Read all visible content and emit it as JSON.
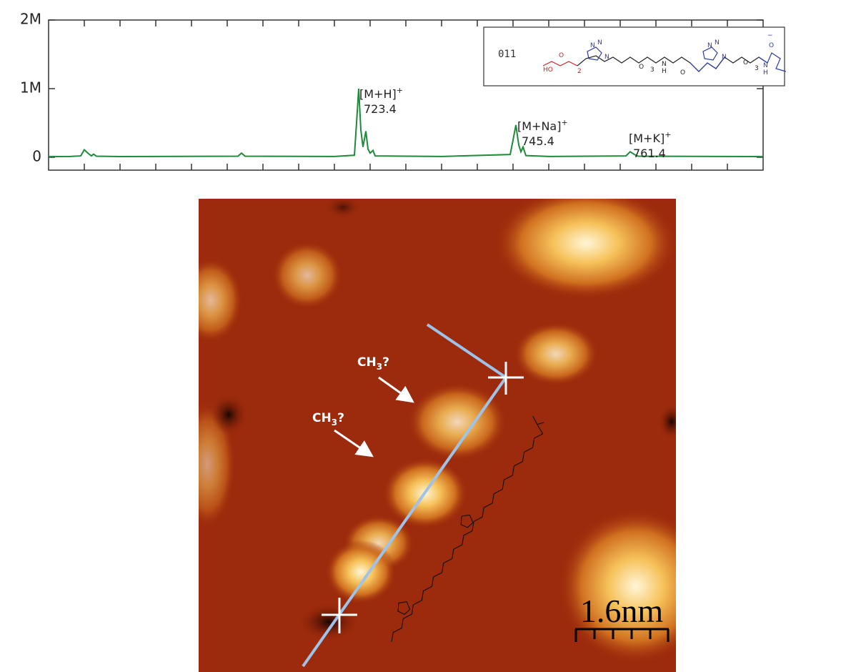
{
  "chart_data": {
    "type": "line",
    "x": [
      680,
      683,
      684.5,
      685,
      685.5,
      686,
      686.3,
      686.7,
      690,
      706.5,
      707,
      707.5,
      720,
      722.8,
      723.1,
      723.4,
      723.7,
      724.0,
      724.4,
      724.7,
      725.0,
      725.4,
      725.7,
      735,
      744.6,
      745.0,
      745.4,
      745.8,
      746.1,
      746.4,
      746.8,
      750,
      760.8,
      761.4,
      762,
      762.5,
      780
    ],
    "series": [
      {
        "color": "#1e8a3a",
        "values": [
          10000,
          12000,
          20000,
          110000,
          60000,
          20000,
          45000,
          15000,
          10000,
          15000,
          60000,
          15000,
          12000,
          30000,
          500000,
          1000000,
          400000,
          150000,
          380000,
          120000,
          60000,
          100000,
          20000,
          12000,
          40000,
          250000,
          470000,
          180000,
          80000,
          150000,
          25000,
          12000,
          20000,
          80000,
          40000,
          15000,
          10000
        ]
      }
    ],
    "xlim": [
      680,
      780
    ],
    "xticks": [
      685,
      690,
      695,
      700,
      705,
      710,
      715,
      720,
      725,
      730,
      735,
      740,
      745,
      750,
      755,
      760,
      765,
      770,
      775
    ],
    "ylim": [
      -187500,
      2000000
    ],
    "yticks": [
      0,
      {
        "value": 1000000,
        "label": "1M"
      },
      {
        "value": 2000000,
        "label": "2M"
      }
    ],
    "annotations": [
      {
        "ion": "[M+H]",
        "charge": "+",
        "mz": "723.4"
      },
      {
        "ion": "[M+Na]",
        "charge": "+",
        "mz": "745.4"
      },
      {
        "ion": "[M+K]",
        "charge": "+",
        "mz": "761.4"
      }
    ]
  },
  "inset": {
    "id": "011",
    "atoms": [
      "HO",
      "O",
      "2",
      "N",
      "N",
      "N",
      "O",
      "3",
      "N",
      "H",
      "O",
      "N",
      "N",
      "N",
      "O",
      "3",
      "N",
      "H",
      "O",
      "−"
    ]
  },
  "stm": {
    "labels": [
      {
        "text": "CH",
        "sub": "3",
        "tail": "?"
      },
      {
        "text": "CH",
        "sub": "3",
        "tail": "?"
      }
    ],
    "scale": "1.6nm"
  }
}
